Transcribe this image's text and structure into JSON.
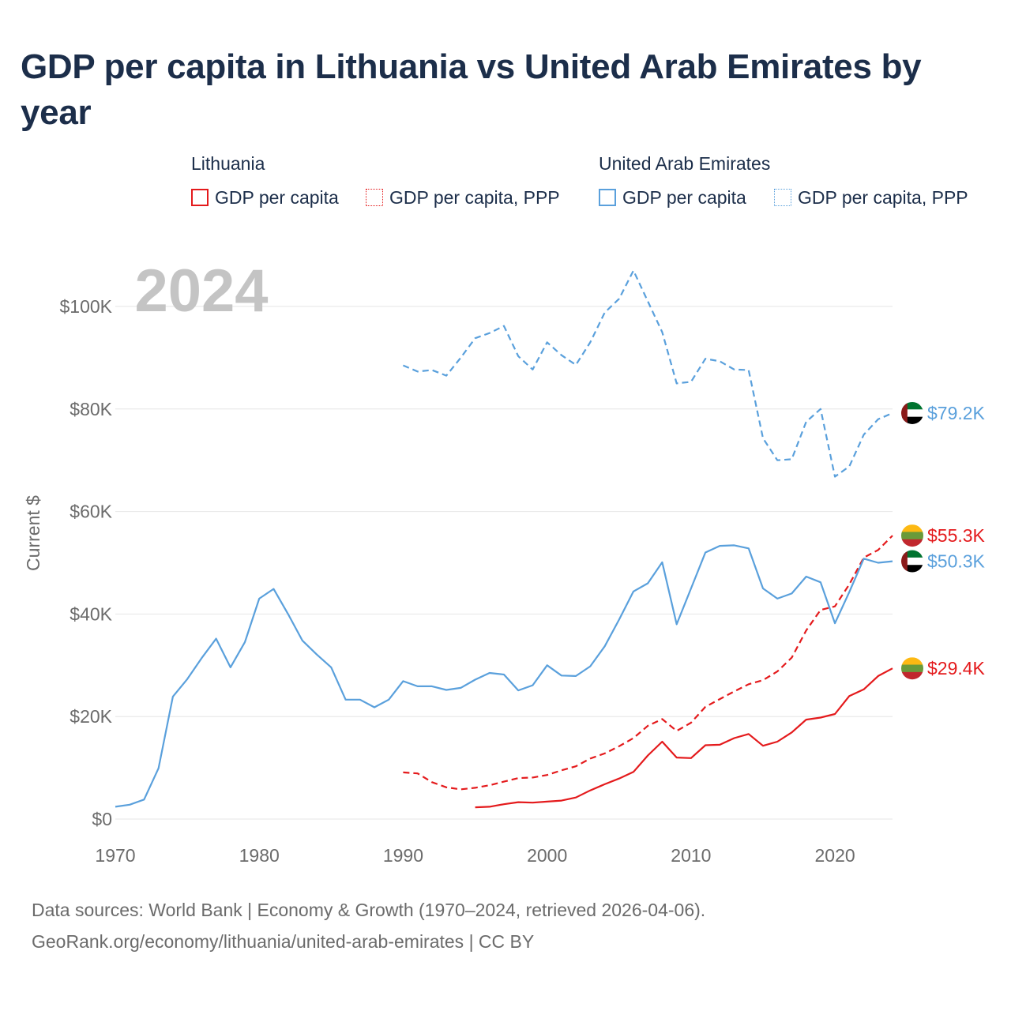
{
  "title": "GDP per capita in Lithuania vs United Arab Emirates by year",
  "legend": {
    "groups": [
      {
        "label": "Lithuania",
        "items": [
          {
            "label": "GDP per capita",
            "color": "#e41a1c",
            "style": "solid"
          },
          {
            "label": "GDP per capita, PPP",
            "color": "#e41a1c",
            "style": "dotted"
          }
        ]
      },
      {
        "label": "United Arab Emirates",
        "items": [
          {
            "label": "GDP per capita",
            "color": "#5aa0dc",
            "style": "solid"
          },
          {
            "label": "GDP per capita, PPP",
            "color": "#5aa0dc",
            "style": "dotted"
          }
        ]
      }
    ]
  },
  "year_label": "2024",
  "footer": {
    "line1": "Data sources: World Bank | Economy & Growth (1970–2024, retrieved 2026-04-06).",
    "line2": "GeoRank.org/economy/lithuania/united-arab-emirates | CC BY"
  },
  "colors": {
    "lithuania": "#e41a1c",
    "uae": "#5aa0dc",
    "grid": "#e6e6e6",
    "axis_text": "#6b6b6b",
    "year_label": "#c4c4c4"
  },
  "flags": {
    "lithuania": [
      "#fdb913",
      "#6a9a3a",
      "#c1272d"
    ],
    "uae": {
      "hoist": "#8b1a1a",
      "stripes": [
        "#00732f",
        "#ffffff",
        "#000000"
      ]
    }
  },
  "chart_data": {
    "type": "line",
    "title": "GDP per capita in Lithuania vs United Arab Emirates by year",
    "xlabel": "",
    "ylabel": "Current $",
    "xlim": [
      1970,
      2024
    ],
    "ylim": [
      0,
      108000
    ],
    "x_ticks": [
      1970,
      1980,
      1990,
      2000,
      2010,
      2020
    ],
    "y_ticks": [
      {
        "value": 0,
        "label": "$0"
      },
      {
        "value": 20000,
        "label": "$20K"
      },
      {
        "value": 40000,
        "label": "$40K"
      },
      {
        "value": 60000,
        "label": "$60K"
      },
      {
        "value": 80000,
        "label": "$80K"
      },
      {
        "value": 100000,
        "label": "$100K"
      }
    ],
    "grid": true,
    "series": [
      {
        "name": "United Arab Emirates — GDP per capita, PPP",
        "country": "uae",
        "style": "dashed",
        "end_label": "$79.2K",
        "x": [
          1990,
          1991,
          1992,
          1993,
          1994,
          1995,
          1996,
          1997,
          1998,
          1999,
          2000,
          2001,
          2002,
          2003,
          2004,
          2005,
          2006,
          2007,
          2008,
          2009,
          2010,
          2011,
          2012,
          2013,
          2014,
          2015,
          2016,
          2017,
          2018,
          2019,
          2020,
          2021,
          2022,
          2023,
          2024
        ],
        "y": [
          88500,
          87300,
          87600,
          86500,
          90000,
          93800,
          94800,
          96200,
          90300,
          87700,
          93000,
          90500,
          88600,
          93000,
          98800,
          101500,
          107000,
          101000,
          95000,
          85000,
          85300,
          89800,
          89300,
          87700,
          87600,
          74300,
          70000,
          70200,
          77500,
          80000,
          66800,
          68800,
          75000,
          78000,
          79200
        ]
      },
      {
        "name": "Lithuania — GDP per capita, PPP",
        "country": "lithuania",
        "style": "dashed",
        "end_label": "$55.3K",
        "x": [
          1990,
          1991,
          1992,
          1993,
          1994,
          1995,
          1996,
          1997,
          1998,
          1999,
          2000,
          2001,
          2002,
          2003,
          2004,
          2005,
          2006,
          2007,
          2008,
          2009,
          2010,
          2011,
          2012,
          2013,
          2014,
          2015,
          2016,
          2017,
          2018,
          2019,
          2020,
          2021,
          2022,
          2023,
          2024
        ],
        "y": [
          9100,
          8900,
          7200,
          6200,
          5800,
          6100,
          6600,
          7300,
          8000,
          8100,
          8600,
          9500,
          10300,
          11800,
          12800,
          14200,
          15800,
          18200,
          19500,
          17200,
          18800,
          21900,
          23400,
          24900,
          26300,
          27100,
          28800,
          31500,
          36800,
          40800,
          41500,
          45800,
          51000,
          52500,
          55300
        ]
      },
      {
        "name": "United Arab Emirates — GDP per capita",
        "country": "uae",
        "style": "solid",
        "end_label": "$50.3K",
        "x": [
          1970,
          1971,
          1972,
          1973,
          1974,
          1975,
          1976,
          1977,
          1978,
          1979,
          1980,
          1981,
          1982,
          1983,
          1984,
          1985,
          1986,
          1987,
          1988,
          1989,
          1990,
          1991,
          1992,
          1993,
          1994,
          1995,
          1996,
          1997,
          1998,
          1999,
          2000,
          2001,
          2002,
          2003,
          2004,
          2005,
          2006,
          2007,
          2008,
          2009,
          2010,
          2011,
          2012,
          2013,
          2014,
          2015,
          2016,
          2017,
          2018,
          2019,
          2020,
          2021,
          2022,
          2023,
          2024
        ],
        "y": [
          2400,
          2800,
          3800,
          9900,
          23900,
          27300,
          31400,
          35200,
          29600,
          34500,
          43000,
          44900,
          40000,
          34800,
          32100,
          29600,
          23300,
          23300,
          21800,
          23300,
          26900,
          25900,
          25900,
          25200,
          25600,
          27200,
          28500,
          28200,
          25100,
          26100,
          30000,
          28000,
          27900,
          29800,
          33700,
          38900,
          44400,
          46000,
          50100,
          38000,
          45000,
          52000,
          53300,
          53400,
          52800,
          45000,
          43000,
          44000,
          47300,
          46200,
          38200,
          44300,
          50800,
          50000,
          50300
        ]
      },
      {
        "name": "Lithuania — GDP per capita",
        "country": "lithuania",
        "style": "solid",
        "end_label": "$29.4K",
        "x": [
          1995,
          1996,
          1997,
          1998,
          1999,
          2000,
          2001,
          2002,
          2003,
          2004,
          2005,
          2006,
          2007,
          2008,
          2009,
          2010,
          2011,
          2012,
          2013,
          2014,
          2015,
          2016,
          2017,
          2018,
          2019,
          2020,
          2021,
          2022,
          2023,
          2024
        ],
        "y": [
          2300,
          2400,
          2900,
          3300,
          3200,
          3400,
          3600,
          4200,
          5600,
          6800,
          7900,
          9200,
          12400,
          15100,
          12000,
          11900,
          14400,
          14500,
          15800,
          16600,
          14300,
          15100,
          16900,
          19400,
          19800,
          20500,
          24000,
          25300,
          27900,
          29400
        ]
      }
    ]
  }
}
